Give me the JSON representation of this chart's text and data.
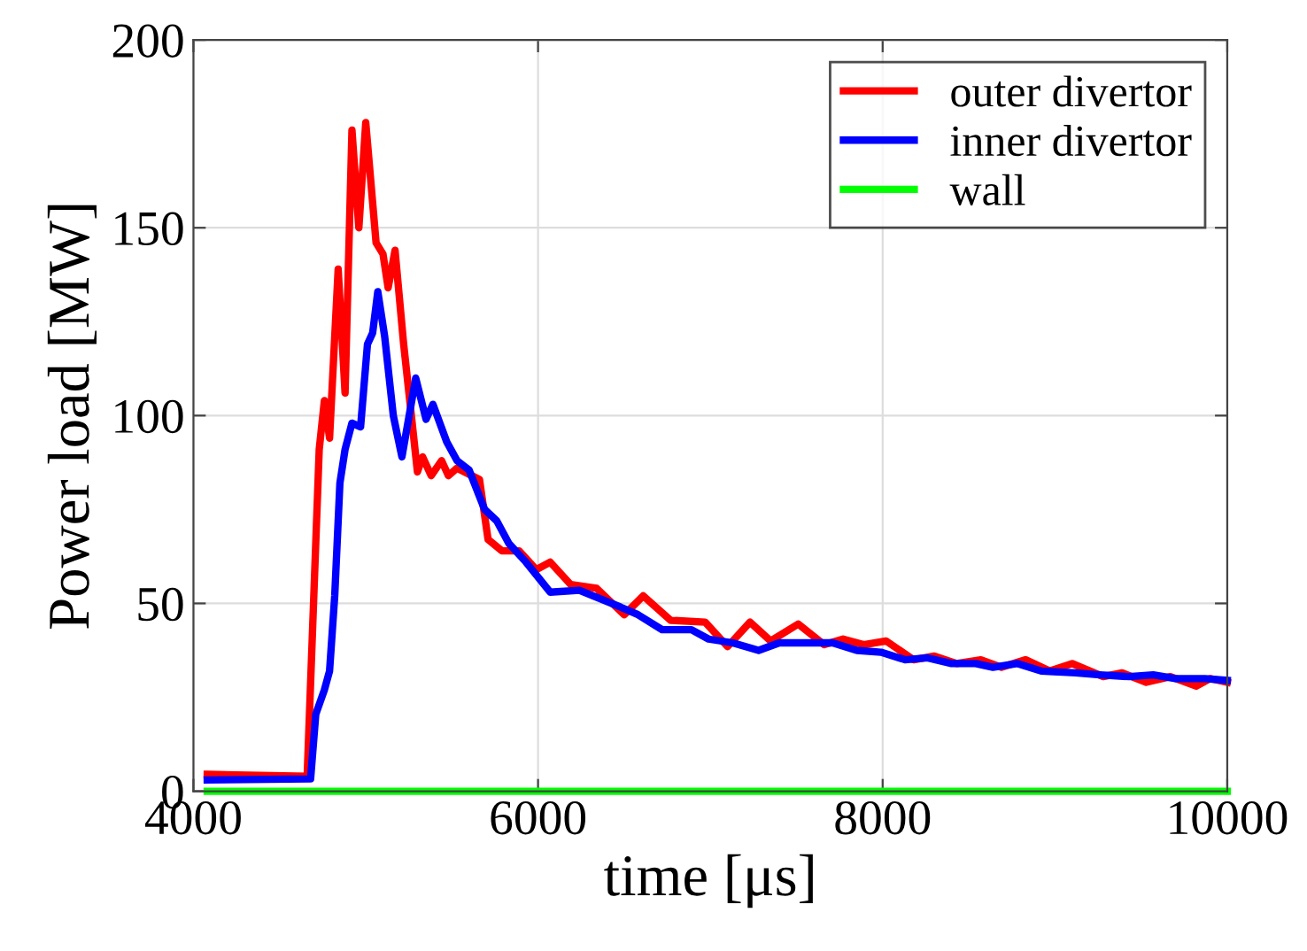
{
  "chart_data": {
    "type": "line",
    "xlabel": "time [μs]",
    "ylabel": "Power load [MW]",
    "xlim": [
      4000,
      10000
    ],
    "ylim": [
      0,
      200
    ],
    "xticks": [
      4000,
      6000,
      8000,
      10000
    ],
    "yticks": [
      0,
      50,
      100,
      150,
      200
    ],
    "grid": true,
    "legend": "top right",
    "line_style": "solid",
    "marker": "none",
    "series": [
      {
        "name": "outer divertor",
        "color": "#ff0000",
        "x": [
          4080,
          4660,
          4730,
          4760,
          4790,
          4840,
          4880,
          4920,
          4960,
          5000,
          5060,
          5100,
          5130,
          5170,
          5220,
          5300,
          5330,
          5380,
          5440,
          5480,
          5530,
          5660,
          5710,
          5790,
          5890,
          5990,
          6070,
          6190,
          6340,
          6500,
          6610,
          6770,
          6970,
          7100,
          7230,
          7350,
          7510,
          7660,
          7770,
          7890,
          8020,
          8180,
          8300,
          8430,
          8570,
          8690,
          8830,
          8970,
          9100,
          9280,
          9390,
          9530,
          9670,
          9820,
          9900,
          10000
        ],
        "values": [
          4.5,
          4,
          91,
          104,
          94,
          139,
          106,
          176,
          150,
          178,
          146,
          143,
          134,
          144,
          119,
          85,
          89,
          84,
          88,
          84,
          86,
          83,
          67,
          64,
          64,
          59,
          61,
          55,
          54,
          47,
          52,
          45.5,
          45,
          38.5,
          45,
          40,
          44.5,
          39,
          40.5,
          39,
          40,
          35,
          36,
          34,
          35,
          33,
          35,
          32,
          34,
          30.5,
          31.5,
          29,
          30.5,
          28,
          30,
          29
        ]
      },
      {
        "name": "inner divertor",
        "color": "#0000ff",
        "x": [
          4080,
          4680,
          4710,
          4760,
          4790,
          4820,
          4850,
          4880,
          4920,
          4970,
          5010,
          5040,
          5070,
          5110,
          5160,
          5210,
          5290,
          5350,
          5390,
          5470,
          5530,
          5600,
          5690,
          5760,
          5830,
          5930,
          6070,
          6240,
          6480,
          6580,
          6720,
          6890,
          6990,
          7130,
          7280,
          7400,
          7710,
          7850,
          7990,
          8130,
          8260,
          8400,
          8540,
          8640,
          8780,
          8920,
          9120,
          9260,
          9430,
          9570,
          9700,
          9870,
          10000
        ],
        "values": [
          3,
          3.3,
          20.5,
          27,
          32,
          52,
          82,
          91,
          98,
          97,
          119,
          122,
          133,
          121,
          100,
          89,
          110,
          99,
          103,
          93,
          88,
          85.5,
          75,
          72,
          66,
          61,
          53,
          53.5,
          49,
          47,
          43,
          43,
          40.5,
          39.5,
          37.5,
          39.5,
          39.5,
          37.5,
          37,
          35,
          35.5,
          34,
          34,
          33,
          34,
          32,
          31.5,
          31,
          30.5,
          31,
          30,
          30,
          29.5
        ]
      },
      {
        "name": "wall",
        "color": "#00ff00",
        "x": [
          4080,
          10000
        ],
        "values": [
          0,
          0
        ]
      }
    ]
  }
}
